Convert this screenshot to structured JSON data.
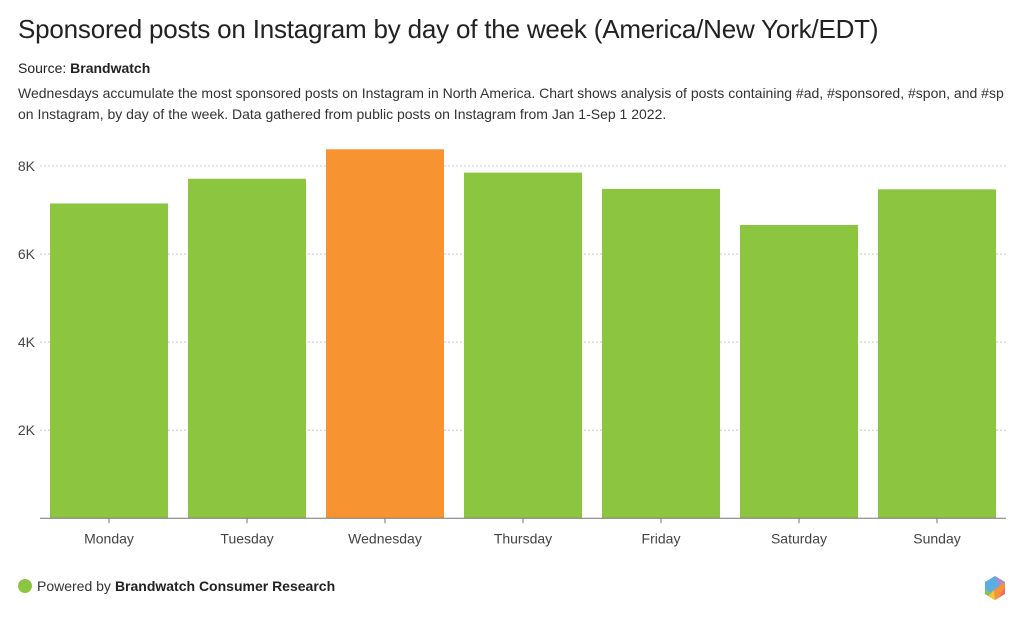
{
  "header": {
    "title": "Sponsored posts on Instagram by day of the week (America/New York/EDT)",
    "source_label": "Source:",
    "source_name": "Brandwatch",
    "description": "Wednesdays accumulate the most sponsored posts on Instagram in North America. Chart shows analysis of posts containing #ad, #sponsored, #spon, and #sp on Instagram, by day of the week. Data gathered from public posts on Instagram from Jan 1-Sep 1 2022."
  },
  "footer": {
    "powered_by": "Powered by",
    "brand": "Brandwatch Consumer Research",
    "dot_color": "#8cc540",
    "logo_icon": "brandwatch-hexagon-logo"
  },
  "colors": {
    "bar_default": "#8cc540",
    "bar_highlight": "#f79331",
    "grid": "#c8c8c8",
    "axis": "#777777"
  },
  "chart_data": {
    "type": "bar",
    "title": "Sponsored posts on Instagram by day of the week (America/New York/EDT)",
    "xlabel": "",
    "ylabel": "",
    "categories": [
      "Monday",
      "Tuesday",
      "Wednesday",
      "Thursday",
      "Friday",
      "Saturday",
      "Sunday"
    ],
    "values": [
      7150,
      7710,
      8380,
      7850,
      7480,
      6660,
      7470
    ],
    "highlight": [
      "Wednesday"
    ],
    "ylim": [
      0,
      8000
    ],
    "yticks": [
      2000,
      4000,
      6000,
      8000
    ],
    "ytick_labels": [
      "2K",
      "4K",
      "6K",
      "8K"
    ],
    "grid": true,
    "legend": "none"
  }
}
